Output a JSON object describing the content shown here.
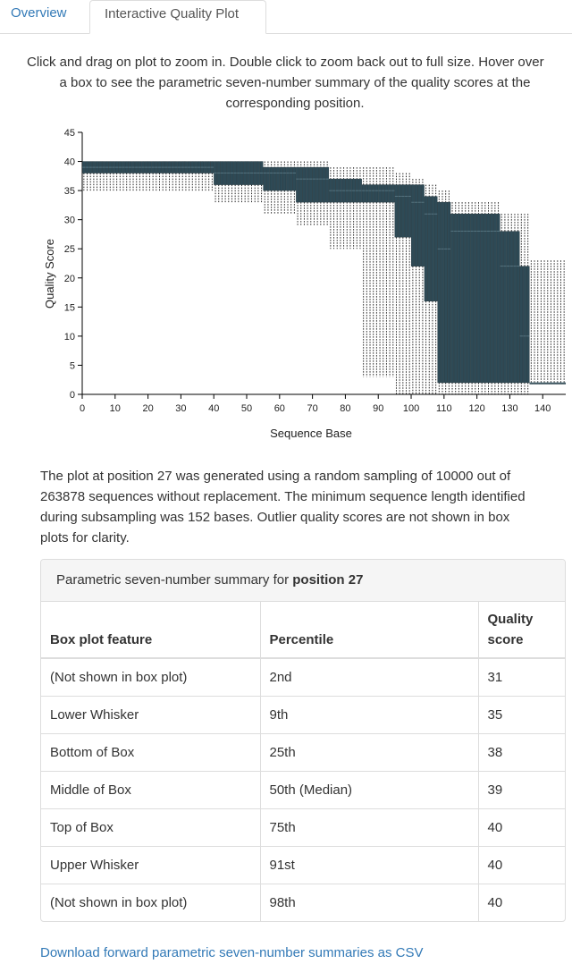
{
  "tabs": [
    {
      "label": "Overview"
    },
    {
      "label": "Interactive Quality Plot"
    }
  ],
  "intro": {
    "line1": "Click and drag on plot to zoom in. Double click to zoom back out to full size. Hover over",
    "line2": "a box to see the parametric seven-number summary of the quality scores at the",
    "line3": "corresponding position."
  },
  "colors": {
    "box_fill": "#2e4a56",
    "link": "#337ab7"
  },
  "chart_data": {
    "type": "box",
    "xlabel": "Sequence Base",
    "ylabel": "Quality Score",
    "xlim": [
      0,
      147
    ],
    "ylim": [
      0,
      45
    ],
    "x_ticks": [
      0,
      10,
      20,
      30,
      40,
      50,
      60,
      70,
      80,
      90,
      100,
      110,
      120,
      130,
      140
    ],
    "y_ticks": [
      0,
      5,
      10,
      15,
      20,
      25,
      30,
      35,
      40,
      45
    ],
    "segments": [
      {
        "from": 1,
        "to": 20,
        "whisker_low": 35,
        "box_low": 38,
        "median": 39,
        "box_high": 40,
        "whisker_high": 40
      },
      {
        "from": 21,
        "to": 40,
        "whisker_low": 35,
        "box_low": 38,
        "median": 39,
        "box_high": 40,
        "whisker_high": 40
      },
      {
        "from": 41,
        "to": 55,
        "whisker_low": 33,
        "box_low": 36,
        "median": 38,
        "box_high": 40,
        "whisker_high": 40
      },
      {
        "from": 56,
        "to": 65,
        "whisker_low": 31,
        "box_low": 35,
        "median": 38,
        "box_high": 39,
        "whisker_high": 40
      },
      {
        "from": 66,
        "to": 75,
        "whisker_low": 29,
        "box_low": 33,
        "median": 37,
        "box_high": 39,
        "whisker_high": 40
      },
      {
        "from": 76,
        "to": 85,
        "whisker_low": 25,
        "box_low": 33,
        "median": 35,
        "box_high": 37,
        "whisker_high": 39
      },
      {
        "from": 86,
        "to": 95,
        "whisker_low": 3,
        "box_low": 33,
        "median": 35,
        "box_high": 36,
        "whisker_high": 39
      },
      {
        "from": 96,
        "to": 100,
        "whisker_low": 0,
        "box_low": 27,
        "median": 34,
        "box_high": 36,
        "whisker_high": 38
      },
      {
        "from": 101,
        "to": 104,
        "whisker_low": 0,
        "box_low": 22,
        "median": 33,
        "box_high": 36,
        "whisker_high": 37
      },
      {
        "from": 105,
        "to": 108,
        "whisker_low": 0,
        "box_low": 16,
        "median": 31,
        "box_high": 34,
        "whisker_high": 36
      },
      {
        "from": 109,
        "to": 112,
        "whisker_low": 0,
        "box_low": 2,
        "median": 25,
        "box_high": 33,
        "whisker_high": 35
      },
      {
        "from": 113,
        "to": 127,
        "whisker_low": 0,
        "box_low": 2,
        "median": 28,
        "box_high": 31,
        "whisker_high": 33
      },
      {
        "from": 128,
        "to": 133,
        "whisker_low": 0,
        "box_low": 2,
        "median": 22,
        "box_high": 28,
        "whisker_high": 31
      },
      {
        "from": 134,
        "to": 136,
        "whisker_low": 0,
        "box_low": 2,
        "median": 10,
        "box_high": 22,
        "whisker_high": 31
      },
      {
        "from": 137,
        "to": 147,
        "whisker_low": 2,
        "box_low": 2,
        "median": 2,
        "box_high": 2,
        "whisker_high": 23
      }
    ]
  },
  "note": {
    "line1": "The plot at position 27 was generated using a random sampling of 10000 out of",
    "line2": "263878 sequences without replacement. The minimum sequence length identified",
    "line3": "during subsampling was 152 bases. Outlier quality scores are not shown in box",
    "line4": "plots for clarity."
  },
  "summary": {
    "heading_prefix": "Parametric seven-number summary for ",
    "heading_position": "position 27",
    "columns": [
      "Box plot feature",
      "Percentile",
      "Quality score"
    ],
    "rows": [
      [
        "(Not shown in box plot)",
        "2nd",
        "31"
      ],
      [
        "Lower Whisker",
        "9th",
        "35"
      ],
      [
        "Bottom of Box",
        "25th",
        "38"
      ],
      [
        "Middle of Box",
        "50th (Median)",
        "39"
      ],
      [
        "Top of Box",
        "75th",
        "40"
      ],
      [
        "Upper Whisker",
        "91st",
        "40"
      ],
      [
        "(Not shown in box plot)",
        "98th",
        "40"
      ]
    ]
  },
  "download_link": "Download forward parametric seven-number summaries as CSV"
}
